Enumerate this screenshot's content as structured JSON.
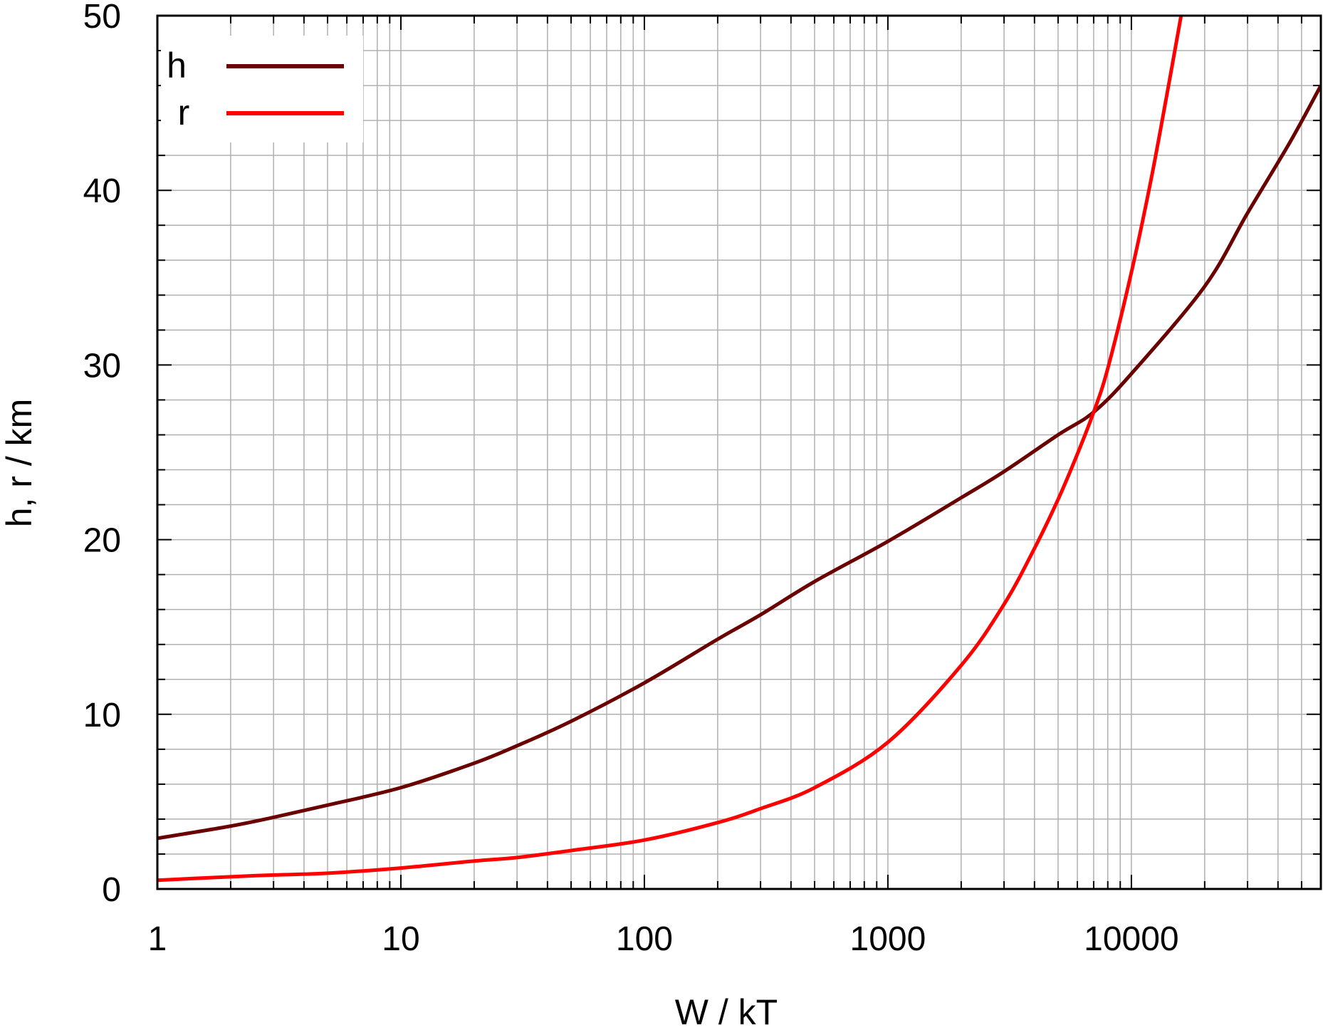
{
  "chart_data": {
    "type": "line",
    "xlabel": "W / kT",
    "ylabel": "h, r / km",
    "xscale": "log",
    "xlim": [
      1,
      60000
    ],
    "ylim": [
      0,
      50
    ],
    "grid": true,
    "legend_position": "top-left",
    "x_tick_labels": [
      "1",
      "10",
      "100",
      "1000",
      "10000"
    ],
    "y_tick_labels": [
      "0",
      "10",
      "20",
      "30",
      "40",
      "50"
    ],
    "colors": {
      "h": "#6b0000",
      "r": "#ff0000",
      "grid": "#b0b0b0",
      "axes": "#000000"
    },
    "series": [
      {
        "name": "h",
        "x": [
          1,
          2,
          3,
          5,
          10,
          20,
          30,
          50,
          100,
          200,
          300,
          500,
          1000,
          2000,
          3000,
          5000,
          7000,
          10000,
          20000,
          30000,
          45000,
          60000
        ],
        "y": [
          2.9,
          3.6,
          4.1,
          4.8,
          5.8,
          7.2,
          8.2,
          9.6,
          11.8,
          14.3,
          15.7,
          17.6,
          19.9,
          22.4,
          23.9,
          26.0,
          27.3,
          29.5,
          34.5,
          38.7,
          42.8,
          46.0
        ]
      },
      {
        "name": "r",
        "x": [
          1,
          2,
          3,
          5,
          10,
          20,
          30,
          50,
          100,
          200,
          300,
          500,
          1000,
          2000,
          3000,
          4000,
          5000,
          6000,
          7000,
          8000,
          10000,
          12000,
          14000,
          16000
        ],
        "y": [
          0.5,
          0.7,
          0.8,
          0.9,
          1.2,
          1.6,
          1.8,
          2.2,
          2.8,
          3.8,
          4.6,
          5.8,
          8.4,
          12.8,
          16.3,
          19.5,
          22.3,
          24.9,
          27.3,
          29.8,
          35.3,
          40.5,
          45.5,
          50.0
        ]
      }
    ]
  }
}
